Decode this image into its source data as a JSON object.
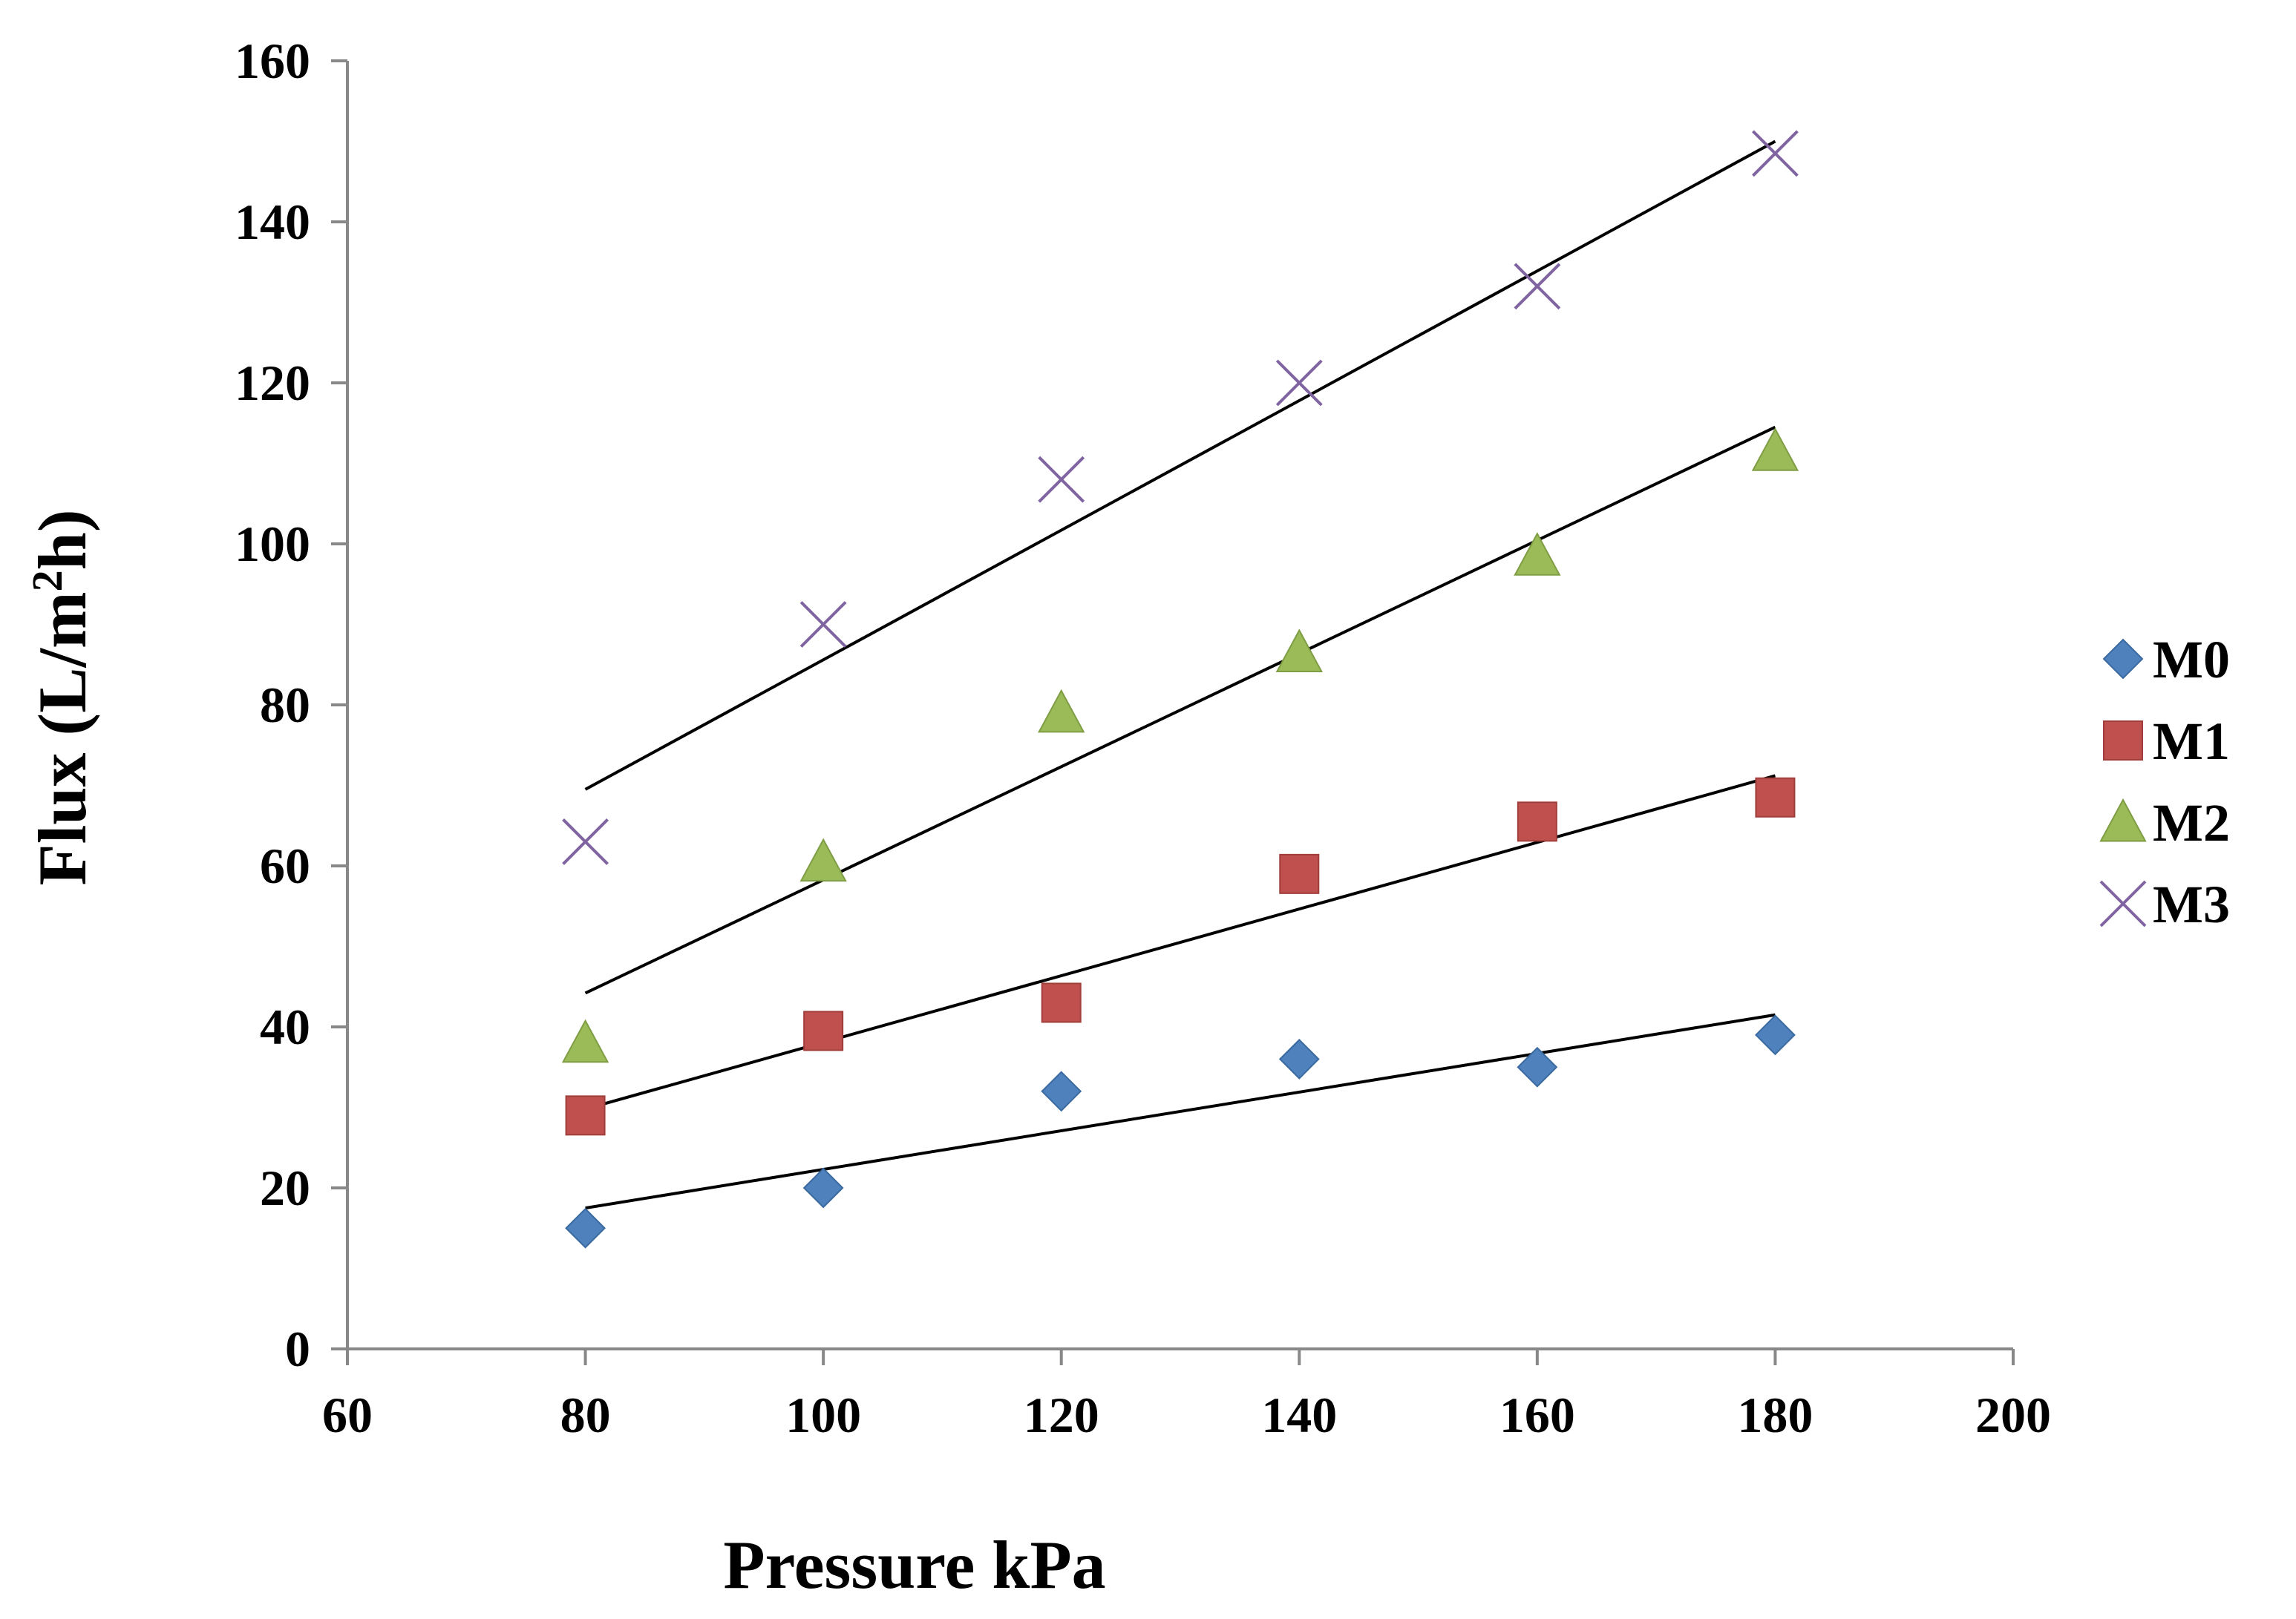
{
  "chart_data": {
    "type": "scatter",
    "title": "",
    "xlabel": "Pressure kPa",
    "ylabel_main": "Flux (L/m",
    "ylabel_sup": "2",
    "ylabel_end": "h)",
    "xlim": [
      60,
      200
    ],
    "ylim": [
      0,
      160
    ],
    "xticks": [
      60,
      80,
      100,
      120,
      140,
      160,
      180,
      200
    ],
    "yticks": [
      0,
      20,
      40,
      60,
      80,
      100,
      120,
      140,
      160
    ],
    "legend_position": "right",
    "x": [
      80,
      100,
      120,
      140,
      160,
      180
    ],
    "series": [
      {
        "name": "M0",
        "marker": "diamond",
        "color": "#4F81BD",
        "values": [
          15,
          20,
          32,
          36,
          35,
          39
        ],
        "trendline": [
          17.5,
          41.5
        ]
      },
      {
        "name": "M1",
        "marker": "square",
        "color": "#C0504D",
        "values": [
          29,
          39.5,
          43,
          59,
          65.5,
          68.5
        ],
        "trendline": [
          29.8,
          71.2
        ]
      },
      {
        "name": "M2",
        "marker": "triangle",
        "color": "#9BBB59",
        "values": [
          38,
          60.5,
          79,
          86.5,
          98.5,
          111.5
        ],
        "trendline": [
          44.2,
          114.5
        ]
      },
      {
        "name": "M3",
        "marker": "x",
        "color": "#8064A2",
        "values": [
          63,
          90,
          108,
          120,
          132,
          148.5
        ],
        "trendline": [
          69.5,
          150
        ]
      }
    ]
  }
}
